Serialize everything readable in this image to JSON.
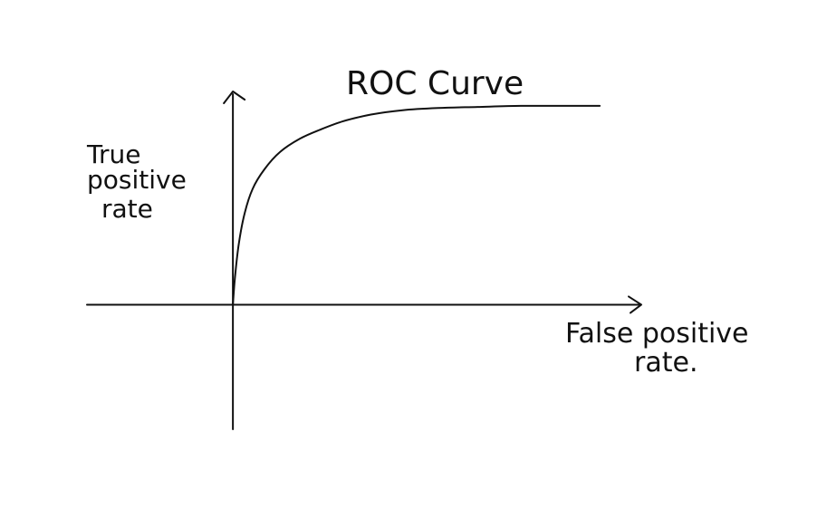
{
  "chart_data": {
    "type": "line",
    "title": "ROC Curve",
    "xlabel": "False positive rate.",
    "ylabel_lines": [
      "True",
      "positive",
      "rate"
    ],
    "xlim": [
      -0.37,
      1.04
    ],
    "ylim": [
      -0.57,
      0.98
    ],
    "grid": false,
    "series": [
      {
        "x": [
          0.0,
          0.005,
          0.015,
          0.03,
          0.05,
          0.08,
          0.12,
          0.17,
          0.22,
          0.28,
          0.35,
          0.43,
          0.52,
          0.62,
          0.73,
          0.85,
          0.93
        ],
        "y": [
          0.0,
          0.12,
          0.28,
          0.42,
          0.53,
          0.62,
          0.7,
          0.76,
          0.8,
          0.84,
          0.87,
          0.89,
          0.9,
          0.905,
          0.91,
          0.91,
          0.91
        ]
      }
    ]
  }
}
